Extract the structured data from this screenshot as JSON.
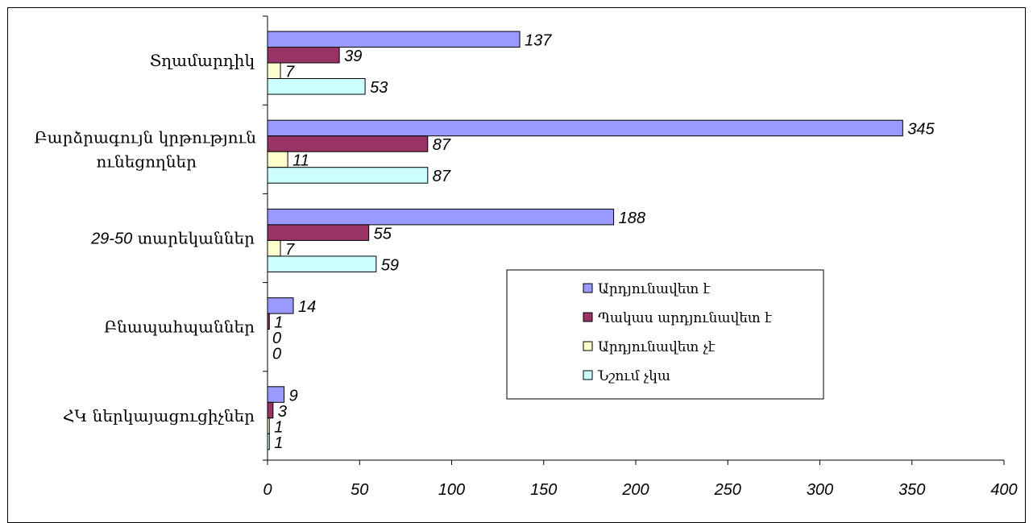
{
  "chart_data": {
    "type": "bar",
    "orientation": "horizontal",
    "categories": [
      "Տղամարդիկ",
      "Բարձրագույն կրթություն ունեցողներ",
      "29-50 տարեկաններ",
      "Բնապահպաններ",
      "ՀԿ ներկայացուցիչներ"
    ],
    "category_display": [
      [
        "Տղամարդիկ"
      ],
      [
        "Բարձրագույն կրթություն",
        "ունեցողներ"
      ],
      [
        "29-50",
        " տարեկաններ"
      ],
      [
        "Բնապահպաններ"
      ],
      [
        "ՀԿ ներկայացուցիչներ"
      ]
    ],
    "series": [
      {
        "name": "Արդյունավետ է",
        "color": "#9999FF",
        "values": [
          137,
          345,
          188,
          14,
          9
        ]
      },
      {
        "name": "Պակաս արդյունավետ է",
        "color": "#993366",
        "values": [
          39,
          87,
          55,
          1,
          3
        ]
      },
      {
        "name": "Արդյունավետ չէ",
        "color": "#FFFFCC",
        "values": [
          7,
          11,
          7,
          0,
          1
        ]
      },
      {
        "name": "Նշում չկա",
        "color": "#CCFFFF",
        "values": [
          53,
          87,
          59,
          0,
          1
        ]
      }
    ],
    "xlim": [
      0,
      400
    ],
    "xticks": [
      0,
      50,
      100,
      150,
      200,
      250,
      300,
      350,
      400
    ],
    "grid": false,
    "legend_position": "right"
  }
}
